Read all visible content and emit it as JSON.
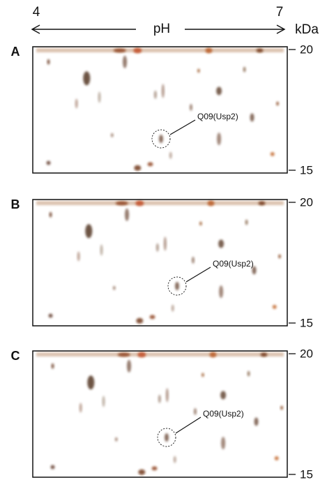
{
  "header": {
    "ph_low": "4",
    "ph_high": "7",
    "axis_label": "pH",
    "unit": "kDa"
  },
  "panels": [
    {
      "label": "A",
      "mw_top": "20",
      "mw_bottom": "15",
      "annotation": "Q09(Usp2)"
    },
    {
      "label": "B",
      "mw_top": "20",
      "mw_bottom": "15",
      "annotation": "Q09(Usp2)"
    },
    {
      "label": "C",
      "mw_top": "20",
      "mw_bottom": "15",
      "annotation": "Q09(Usp2)"
    }
  ]
}
